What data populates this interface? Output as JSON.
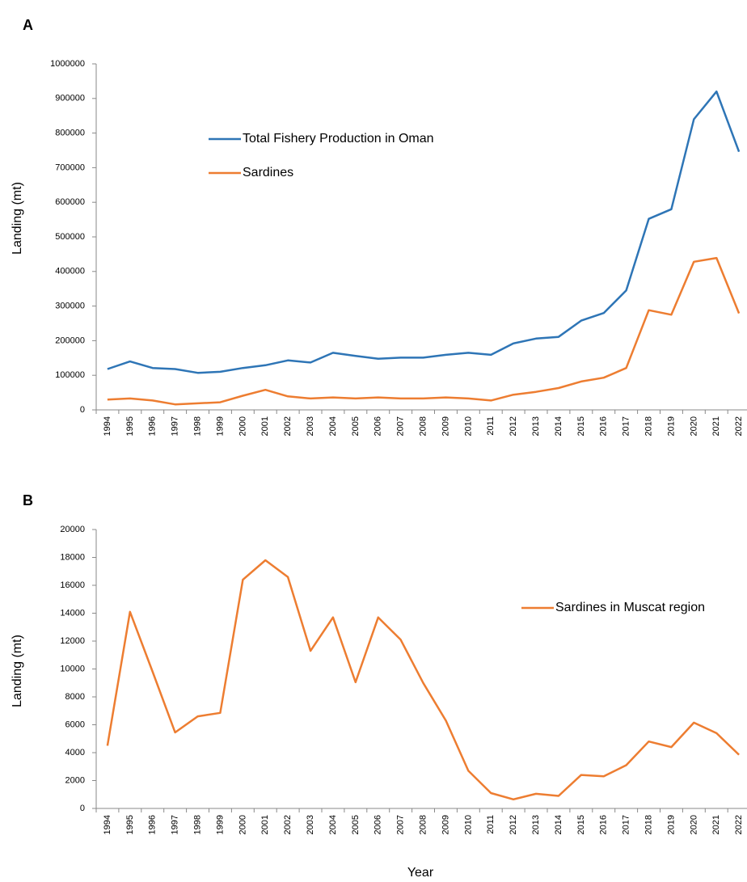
{
  "chart_data": [
    {
      "type": "line",
      "panel_label": "A",
      "ylabel": "Landing (mt)",
      "categories": [
        "1994",
        "1995",
        "1996",
        "1997",
        "1998",
        "1999",
        "2000",
        "2001",
        "2002",
        "2003",
        "2004",
        "2005",
        "2006",
        "2007",
        "2008",
        "2009",
        "2010",
        "2011",
        "2012",
        "2013",
        "2014",
        "2015",
        "2016",
        "2017",
        "2018",
        "2019",
        "2020",
        "2021",
        "2022"
      ],
      "series": [
        {
          "name": "Total Fishery Production in Oman",
          "color": "#2e75b6",
          "values": [
            118000,
            140000,
            121000,
            118000,
            107000,
            110000,
            121000,
            129000,
            143000,
            137000,
            165000,
            156000,
            148000,
            151000,
            151000,
            159000,
            165000,
            159000,
            192000,
            206000,
            211000,
            258000,
            280000,
            345000,
            552000,
            580000,
            840000,
            920000,
            746000
          ]
        },
        {
          "name": "Sardines",
          "color": "#ed7d31",
          "values": [
            30000,
            33000,
            27000,
            16000,
            19000,
            22000,
            41000,
            58000,
            39000,
            33000,
            36000,
            33000,
            36000,
            33000,
            33000,
            36000,
            33000,
            27000,
            44000,
            52000,
            63000,
            82000,
            93000,
            121000,
            288000,
            275000,
            428000,
            439000,
            279000
          ]
        }
      ],
      "ylim": [
        0,
        1000000
      ],
      "yticks": [
        0,
        100000,
        200000,
        300000,
        400000,
        500000,
        600000,
        700000,
        800000,
        900000,
        1000000
      ]
    },
    {
      "type": "line",
      "panel_label": "B",
      "ylabel": "Landing (mt)",
      "xlabel": "Year",
      "categories": [
        "1994",
        "1995",
        "1996",
        "1997",
        "1998",
        "1999",
        "2000",
        "2001",
        "2002",
        "2003",
        "2004",
        "2005",
        "2006",
        "2007",
        "2008",
        "2009",
        "2010",
        "2011",
        "2012",
        "2013",
        "2014",
        "2015",
        "2016",
        "2017",
        "2018",
        "2019",
        "2020",
        "2021",
        "2022"
      ],
      "series": [
        {
          "name": "Sardines in Muscat region",
          "color": "#ed7d31",
          "values": [
            4500,
            14100,
            9800,
            5450,
            6600,
            6850,
            16400,
            17800,
            16600,
            11300,
            13700,
            9050,
            13700,
            12100,
            9000,
            6300,
            2700,
            1100,
            650,
            1050,
            900,
            2400,
            2300,
            3100,
            4800,
            4400,
            6150,
            5400,
            3850
          ]
        }
      ],
      "ylim": [
        0,
        20000
      ],
      "yticks": [
        0,
        2000,
        4000,
        6000,
        8000,
        10000,
        12000,
        14000,
        16000,
        18000,
        20000
      ]
    }
  ]
}
